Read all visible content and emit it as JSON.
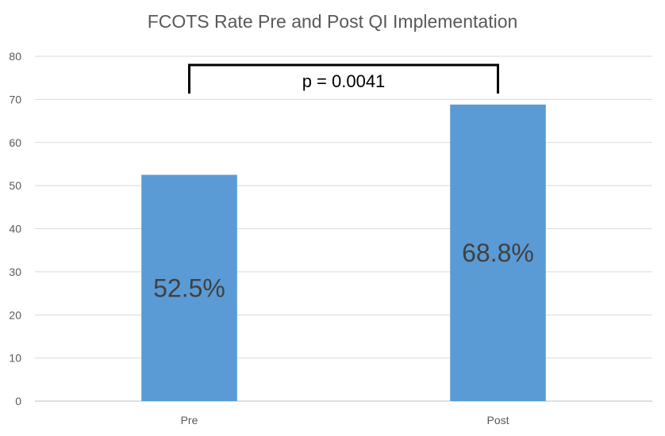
{
  "chart_data": {
    "type": "bar",
    "title": "FCOTS Rate Pre and Post QI Implementation",
    "xlabel": "",
    "ylabel": "",
    "categories": [
      "Pre",
      "Post"
    ],
    "values": [
      52.5,
      68.8
    ],
    "data_labels": [
      "52.5%",
      "68.8%"
    ],
    "ylim": [
      0,
      80
    ],
    "yticks": [
      0,
      10,
      20,
      30,
      40,
      50,
      60,
      70,
      80
    ],
    "grid": true,
    "legend": "none",
    "bar_color": "#5b9bd5",
    "annotation": {
      "text": "p = 0.0041",
      "between": [
        "Pre",
        "Post"
      ]
    }
  }
}
